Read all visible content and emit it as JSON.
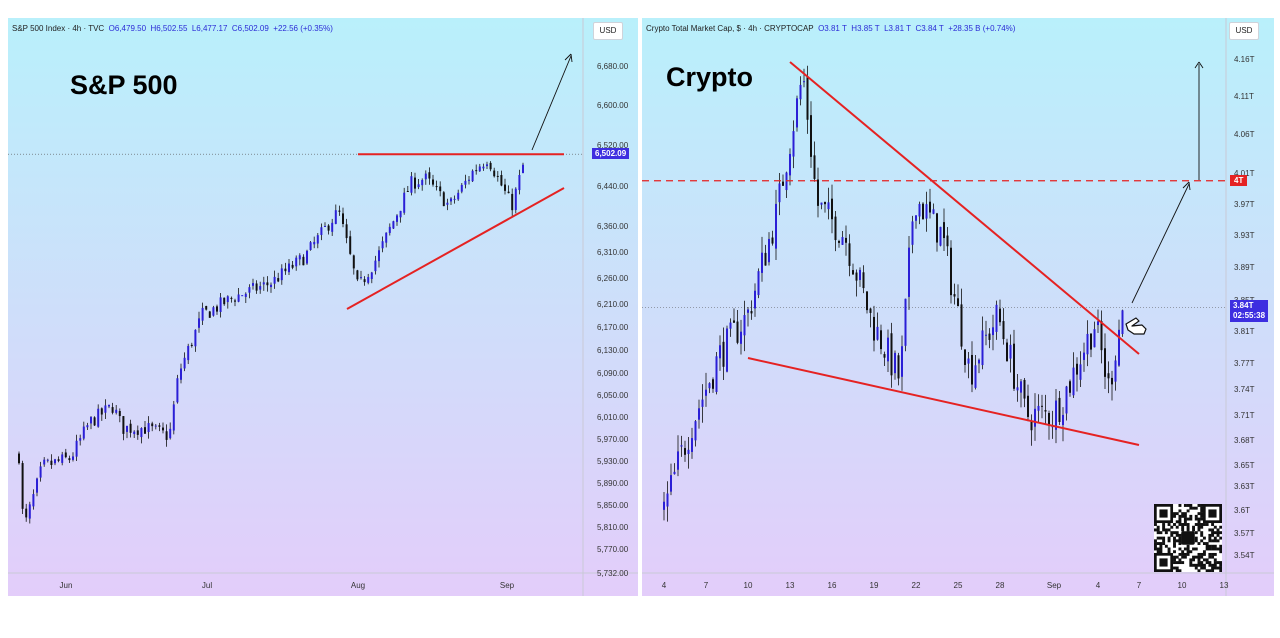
{
  "colors": {
    "candle": "#2b1fd6",
    "wick": "#111111",
    "trendline": "#e52222",
    "price_tag": "#3d2ee0",
    "level_tag": "#e52222",
    "bg_top": "#b9f0fb",
    "bg_bottom": "#e3cdfa"
  },
  "left": {
    "header": {
      "name": "S&P 500 Index · 4h · TVC",
      "o": "O6,479.50",
      "h": "H6,502.55",
      "l": "L6,477.17",
      "c": "C6,502.09",
      "chg": "+22.56 (+0.35%)"
    },
    "currency": "USD",
    "big_title": "S&P 500",
    "price_tag": "6,502.09"
  },
  "right": {
    "header": {
      "name": "Crypto Total Market Cap, $ · 4h · CRYPTOCAP",
      "o": "O3.81 T",
      "h": "H3.85 T",
      "l": "L3.81 T",
      "c": "C3.84 T",
      "chg": "+28.35 B (+0.74%)"
    },
    "currency": "USD",
    "big_title": "Crypto",
    "price_tag": "3.84T",
    "countdown": "02:55:38",
    "level_tag": "4T"
  },
  "chart_data": [
    {
      "type": "candlestick",
      "title": "S&P 500",
      "currency": "USD",
      "y_ticks": [
        "6,680.00",
        "6,600.00",
        "6,520.00",
        "6,440.00",
        "6,360.00",
        "6,310.00",
        "6,260.00",
        "6,210.00",
        "6,170.00",
        "6,130.00",
        "6,090.00",
        "6,050.00",
        "6,010.00",
        "5,970.00",
        "5,930.00",
        "5,890.00",
        "5,850.00",
        "5,810.00",
        "5,770.00",
        "5,732.00"
      ],
      "x_ticks": [
        "Jun",
        "Jul",
        "Aug",
        "Sep"
      ],
      "last_close": 6502.09,
      "resistance": 6502,
      "close_path": [
        {
          "x": "2025-05-22",
          "y": 5940
        },
        {
          "x": "2025-05-23",
          "y": 5805
        },
        {
          "x": "2025-05-27",
          "y": 5920
        },
        {
          "x": "2025-06-02",
          "y": 5935
        },
        {
          "x": "2025-06-06",
          "y": 6000
        },
        {
          "x": "2025-06-11",
          "y": 6030
        },
        {
          "x": "2025-06-13",
          "y": 5990
        },
        {
          "x": "2025-06-18",
          "y": 5990
        },
        {
          "x": "2025-06-23",
          "y": 5975
        },
        {
          "x": "2025-06-25",
          "y": 6090
        },
        {
          "x": "2025-06-30",
          "y": 6190
        },
        {
          "x": "2025-07-07",
          "y": 6225
        },
        {
          "x": "2025-07-14",
          "y": 6250
        },
        {
          "x": "2025-07-21",
          "y": 6300
        },
        {
          "x": "2025-07-28",
          "y": 6390
        },
        {
          "x": "2025-08-01",
          "y": 6240
        },
        {
          "x": "2025-08-05",
          "y": 6300
        },
        {
          "x": "2025-08-12",
          "y": 6445
        },
        {
          "x": "2025-08-15",
          "y": 6455
        },
        {
          "x": "2025-08-20",
          "y": 6400
        },
        {
          "x": "2025-08-25",
          "y": 6470
        },
        {
          "x": "2025-08-28",
          "y": 6495
        },
        {
          "x": "2025-09-02",
          "y": 6400
        },
        {
          "x": "2025-09-05",
          "y": 6502
        }
      ],
      "annotations": [
        "horizontal resistance ~6,502",
        "rising support line",
        "arrow pointing up"
      ]
    },
    {
      "type": "candlestick",
      "title": "Crypto",
      "currency": "USD",
      "y_ticks": [
        "4.16T",
        "4.11T",
        "4.06T",
        "4.01T",
        "3.97T",
        "3.93T",
        "3.89T",
        "3.85T",
        "3.81T",
        "3.77T",
        "3.74T",
        "3.71T",
        "3.68T",
        "3.65T",
        "3.63T",
        "3.6T",
        "3.57T",
        "3.54T"
      ],
      "x_ticks": [
        "4",
        "7",
        "10",
        "13",
        "16",
        "19",
        "22",
        "25",
        "28",
        "Sep",
        "4",
        "7",
        "10",
        "13"
      ],
      "last_close": 3.84,
      "level": 4.0,
      "close_path": [
        {
          "x": "2025-08-04",
          "y": 3.6
        },
        {
          "x": "2025-08-06",
          "y": 3.7
        },
        {
          "x": "2025-08-08",
          "y": 3.78
        },
        {
          "x": "2025-08-10",
          "y": 3.83
        },
        {
          "x": "2025-08-12",
          "y": 3.95
        },
        {
          "x": "2025-08-14",
          "y": 4.14
        },
        {
          "x": "2025-08-15",
          "y": 3.97
        },
        {
          "x": "2025-08-17",
          "y": 3.93
        },
        {
          "x": "2025-08-19",
          "y": 3.82
        },
        {
          "x": "2025-08-21",
          "y": 3.75
        },
        {
          "x": "2025-08-22",
          "y": 3.98
        },
        {
          "x": "2025-08-24",
          "y": 3.93
        },
        {
          "x": "2025-08-26",
          "y": 3.76
        },
        {
          "x": "2025-08-28",
          "y": 3.83
        },
        {
          "x": "2025-08-30",
          "y": 3.71
        },
        {
          "x": "2025-09-01",
          "y": 3.71
        },
        {
          "x": "2025-09-02",
          "y": 3.74
        },
        {
          "x": "2025-09-04",
          "y": 3.82
        },
        {
          "x": "2025-09-05",
          "y": 3.74
        },
        {
          "x": "2025-09-06",
          "y": 3.84
        }
      ],
      "annotations": [
        "falling wedge",
        "4T dashed level",
        "arrow pointing up"
      ]
    }
  ]
}
